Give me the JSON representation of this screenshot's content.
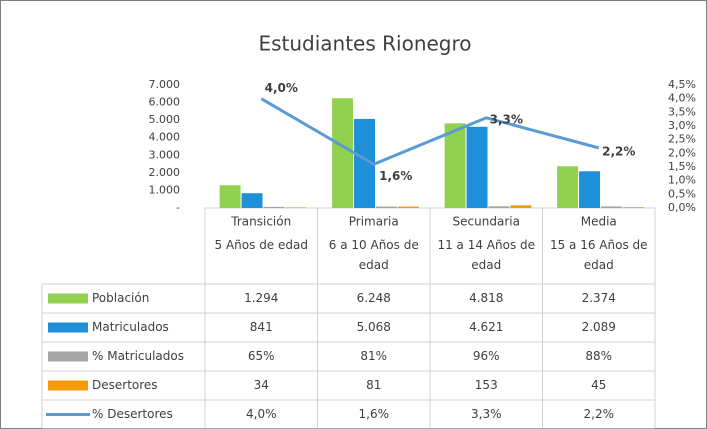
{
  "chart_data": {
    "type": "bar",
    "title": "Estudiantes Rionegro",
    "categories": [
      "Transición",
      "Primaria",
      "Secundaria",
      "Media"
    ],
    "subcategories": [
      "5 Años de edad",
      "6 a 10 Años de edad",
      "11 a 14 Años de edad",
      "15 a 16 Años de edad"
    ],
    "series": [
      {
        "name": "Población",
        "color": "#92d050",
        "type": "bar",
        "values": [
          1294,
          6248,
          4818,
          2374
        ],
        "value_labels": [
          "1.294",
          "6.248",
          "4.818",
          "2.374"
        ]
      },
      {
        "name": "Matriculados",
        "color": "#1f8fd8",
        "type": "bar",
        "values": [
          841,
          5068,
          4621,
          2089
        ],
        "value_labels": [
          "841",
          "5.068",
          "4.621",
          "2.089"
        ]
      },
      {
        "name": "% Matriculados",
        "color": "#a5a5a5",
        "type": "bar",
        "values": [
          65,
          81,
          96,
          88
        ],
        "value_labels": [
          "65%",
          "81%",
          "96%",
          "88%"
        ]
      },
      {
        "name": "Desertores",
        "color": "#f59a0c",
        "type": "bar",
        "values": [
          34,
          81,
          153,
          45
        ],
        "value_labels": [
          "34",
          "81",
          "153",
          "45"
        ]
      },
      {
        "name": "% Desertores",
        "color": "#5b9bd5",
        "type": "line",
        "axis": "y2",
        "values": [
          4.0,
          1.6,
          3.3,
          2.2
        ],
        "value_labels": [
          "4,0%",
          "1,6%",
          "3,3%",
          "2,2%"
        ]
      }
    ],
    "ylim": [
      0,
      7000
    ],
    "yticks": [
      {
        "value": 0,
        "label": "-"
      },
      {
        "value": 1000,
        "label": "1.000"
      },
      {
        "value": 2000,
        "label": "2.000"
      },
      {
        "value": 3000,
        "label": "3.000"
      },
      {
        "value": 4000,
        "label": "4.000"
      },
      {
        "value": 5000,
        "label": "5.000"
      },
      {
        "value": 6000,
        "label": "6.000"
      },
      {
        "value": 7000,
        "label": "7.000"
      }
    ],
    "y2lim": [
      0,
      4.5
    ],
    "y2ticks": [
      {
        "value": 0,
        "label": "0,0%"
      },
      {
        "value": 0.5,
        "label": "0,5%"
      },
      {
        "value": 1,
        "label": "1,0%"
      },
      {
        "value": 1.5,
        "label": "1,5%"
      },
      {
        "value": 2,
        "label": "2,0%"
      },
      {
        "value": 2.5,
        "label": "2,5%"
      },
      {
        "value": 3,
        "label": "3,0%"
      },
      {
        "value": 3.5,
        "label": "3,5%"
      },
      {
        "value": 4,
        "label": "4,0%"
      },
      {
        "value": 4.5,
        "label": "4,5%"
      }
    ],
    "grid": false
  }
}
